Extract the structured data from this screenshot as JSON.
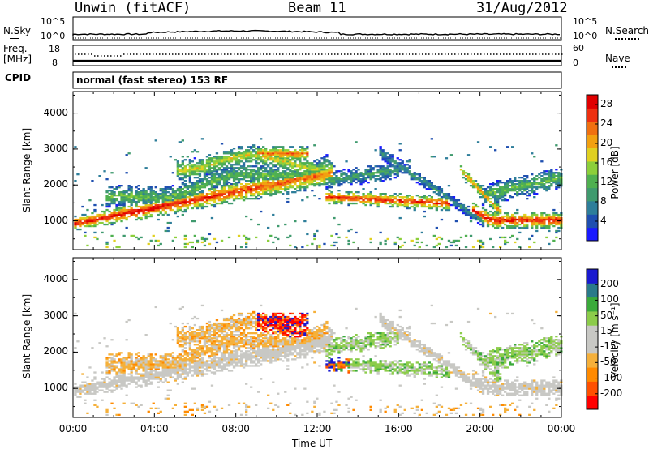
{
  "header": {
    "station": "Unwin (fitACF)",
    "beam": "Beam 11",
    "date": "31/Aug/2012"
  },
  "top_panels": {
    "nsky_label": "N.Sky",
    "nsky_ticks": [
      "10^5",
      "10^0"
    ],
    "nsearch_label": "N.Search",
    "nsearch_ticks": [
      "10^5",
      "10^0"
    ],
    "freq_label": "Freq.",
    "freq_unit": "[MHz]",
    "freq_ticks": [
      "18",
      "8"
    ],
    "nave_label": "Nave",
    "nave_ticks": [
      "60",
      "0"
    ],
    "cpid_label": "CPID",
    "cpid_text": "normal (fast stereo) 153 RF"
  },
  "colors": {
    "power_scale": [
      "#1a1aff",
      "#1f4fb0",
      "#2e7e9a",
      "#3f9a6e",
      "#4fb050",
      "#8ccf3a",
      "#e0d020",
      "#f2a010",
      "#f07010",
      "#ee3010",
      "#e00000"
    ],
    "velocity_scale": [
      "#ff0000",
      "#ff5000",
      "#ff8a00",
      "#f5b03a",
      "#c8c8c4",
      "#c8c8c4",
      "#8ccc4a",
      "#3aaa3a",
      "#2a7a8a",
      "#1a1ad0"
    ],
    "grey": "#c8c8c4"
  },
  "chart_data": [
    {
      "type": "heatmap",
      "panel": "power",
      "xlabel": "Time UT",
      "ylabel": "Slant Range [km]",
      "x_ticks": [
        "00:00",
        "04:00",
        "08:00",
        "12:00",
        "16:00",
        "20:00",
        "00:00"
      ],
      "y_ticks": [
        "1000",
        "2000",
        "3000",
        "4000"
      ],
      "ylim": [
        200,
        4600
      ],
      "xlim_hours": [
        0,
        24
      ],
      "colorbar_label": "Power [dB]",
      "colorbar_ticks": [
        "4",
        "8",
        "12",
        "16",
        "20",
        "24",
        "28"
      ],
      "colorbar_range": [
        0,
        30
      ]
    },
    {
      "type": "heatmap",
      "panel": "velocity",
      "xlabel": "Time UT",
      "ylabel": "Slant Range [km]",
      "x_ticks": [
        "00:00",
        "04:00",
        "08:00",
        "12:00",
        "16:00",
        "20:00",
        "00:00"
      ],
      "y_ticks": [
        "1000",
        "2000",
        "3000",
        "4000"
      ],
      "ylim": [
        200,
        4600
      ],
      "xlim_hours": [
        0,
        24
      ],
      "colorbar_label": "Velocity [m s⁻¹]",
      "colorbar_ticks": [
        "200",
        "100",
        "50",
        "15",
        "-15",
        "-50",
        "-100",
        "-200"
      ]
    }
  ]
}
